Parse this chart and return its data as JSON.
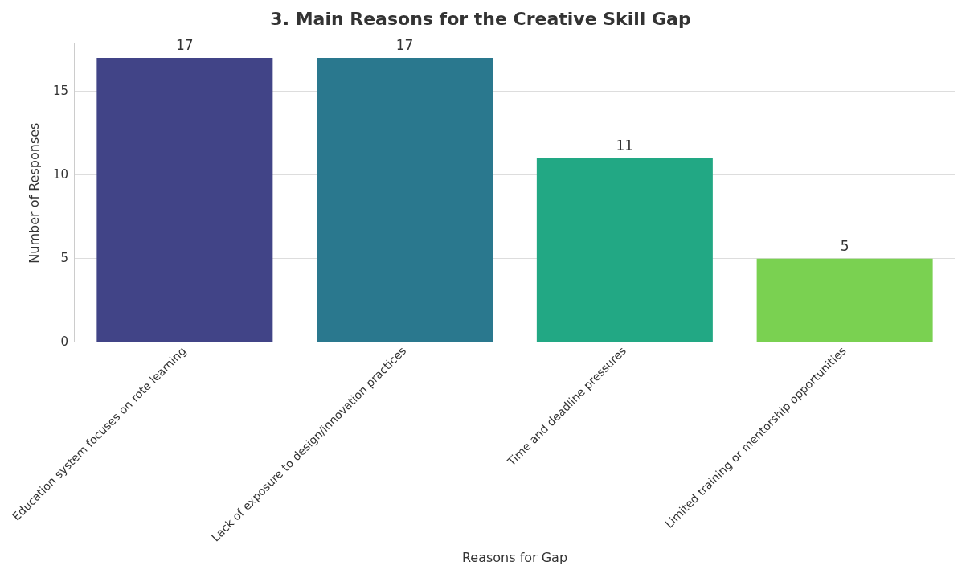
{
  "chart_data": {
    "type": "bar",
    "title": "3. Main Reasons for the Creative Skill Gap",
    "xlabel": "Reasons for Gap",
    "ylabel": "Number of Responses",
    "categories": [
      "Education system focuses on rote learning",
      "Lack of exposure to design/innovation practices",
      "Time and deadline pressures",
      "Limited training or mentorship opportunities"
    ],
    "values": [
      17,
      17,
      11,
      5
    ],
    "colors": [
      "#414487",
      "#2a788e",
      "#22a884",
      "#7ad151"
    ],
    "ylim": [
      0,
      17.85
    ],
    "yticks": [
      0,
      5,
      10,
      15
    ],
    "grid": "y",
    "data_labels": true
  }
}
